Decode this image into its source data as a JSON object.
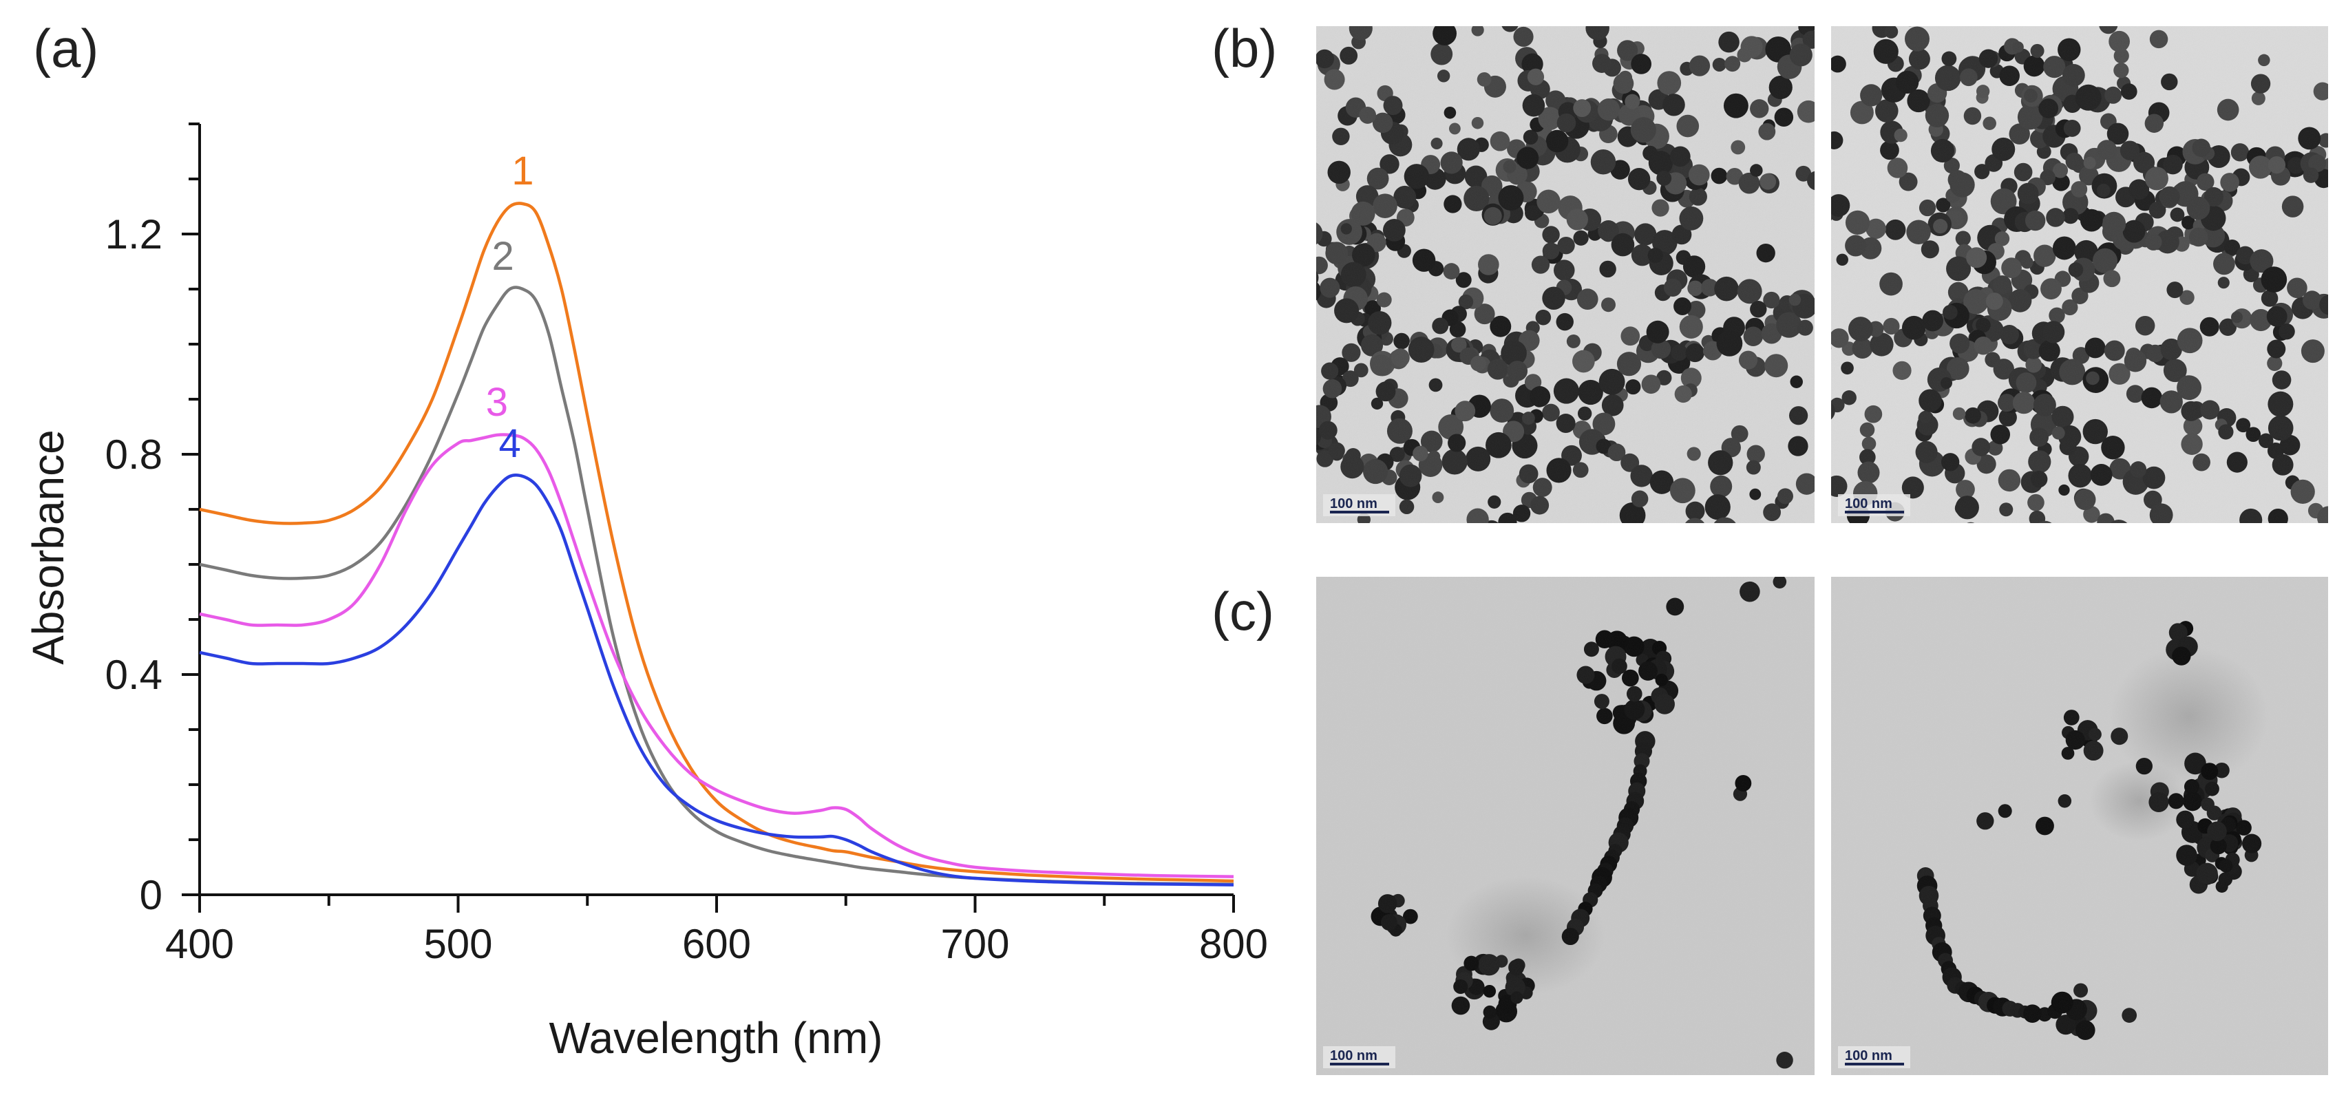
{
  "figure": {
    "panel_a_label": "(a)",
    "panel_b_label": "(b)",
    "panel_c_label": "(c)",
    "scale_bar_text": "100 nm"
  },
  "chart_data": {
    "type": "line",
    "title": "",
    "xlabel": "Wavelength (nm)",
    "ylabel": "Absorbance",
    "xlim": [
      400,
      800
    ],
    "ylim": [
      0,
      1.4
    ],
    "x_ticks": [
      "400",
      "500",
      "600",
      "700",
      "800"
    ],
    "y_ticks": [
      "0",
      "0.4",
      "0.8",
      "1.2"
    ],
    "x": [
      400,
      410,
      420,
      430,
      440,
      450,
      460,
      470,
      480,
      490,
      500,
      505,
      510,
      515,
      520,
      525,
      530,
      535,
      540,
      545,
      550,
      560,
      570,
      580,
      590,
      600,
      610,
      620,
      630,
      640,
      645,
      650,
      655,
      660,
      670,
      680,
      690,
      700,
      720,
      740,
      760,
      780,
      800
    ],
    "series": [
      {
        "name": "1",
        "color": "#f07a1c",
        "values": [
          0.7,
          0.69,
          0.68,
          0.675,
          0.675,
          0.68,
          0.7,
          0.74,
          0.81,
          0.9,
          1.03,
          1.1,
          1.17,
          1.22,
          1.25,
          1.255,
          1.24,
          1.18,
          1.1,
          0.99,
          0.87,
          0.64,
          0.45,
          0.32,
          0.23,
          0.17,
          0.135,
          0.11,
          0.095,
          0.085,
          0.08,
          0.078,
          0.073,
          0.068,
          0.06,
          0.052,
          0.046,
          0.042,
          0.036,
          0.032,
          0.029,
          0.027,
          0.025
        ]
      },
      {
        "name": "2",
        "color": "#7a7a7a",
        "values": [
          0.6,
          0.59,
          0.58,
          0.575,
          0.575,
          0.58,
          0.6,
          0.64,
          0.71,
          0.8,
          0.91,
          0.97,
          1.03,
          1.07,
          1.1,
          1.1,
          1.08,
          1.02,
          0.92,
          0.82,
          0.7,
          0.47,
          0.31,
          0.21,
          0.15,
          0.115,
          0.095,
          0.08,
          0.07,
          0.062,
          0.058,
          0.054,
          0.05,
          0.047,
          0.042,
          0.037,
          0.033,
          0.03,
          0.026,
          0.023,
          0.021,
          0.02,
          0.019
        ]
      },
      {
        "name": "3",
        "color": "#e85ae8",
        "values": [
          0.51,
          0.5,
          0.49,
          0.49,
          0.49,
          0.5,
          0.53,
          0.6,
          0.7,
          0.78,
          0.82,
          0.825,
          0.83,
          0.835,
          0.835,
          0.83,
          0.81,
          0.77,
          0.71,
          0.64,
          0.57,
          0.44,
          0.34,
          0.27,
          0.22,
          0.19,
          0.17,
          0.155,
          0.148,
          0.153,
          0.158,
          0.155,
          0.14,
          0.12,
          0.09,
          0.07,
          0.058,
          0.05,
          0.043,
          0.039,
          0.036,
          0.034,
          0.033
        ]
      },
      {
        "name": "4",
        "color": "#2a3fe0",
        "values": [
          0.44,
          0.43,
          0.42,
          0.42,
          0.42,
          0.42,
          0.43,
          0.45,
          0.49,
          0.55,
          0.63,
          0.67,
          0.71,
          0.74,
          0.76,
          0.76,
          0.745,
          0.71,
          0.66,
          0.59,
          0.52,
          0.38,
          0.27,
          0.2,
          0.16,
          0.135,
          0.12,
          0.11,
          0.105,
          0.105,
          0.106,
          0.1,
          0.09,
          0.078,
          0.06,
          0.045,
          0.035,
          0.03,
          0.025,
          0.022,
          0.02,
          0.019,
          0.018
        ]
      }
    ]
  }
}
